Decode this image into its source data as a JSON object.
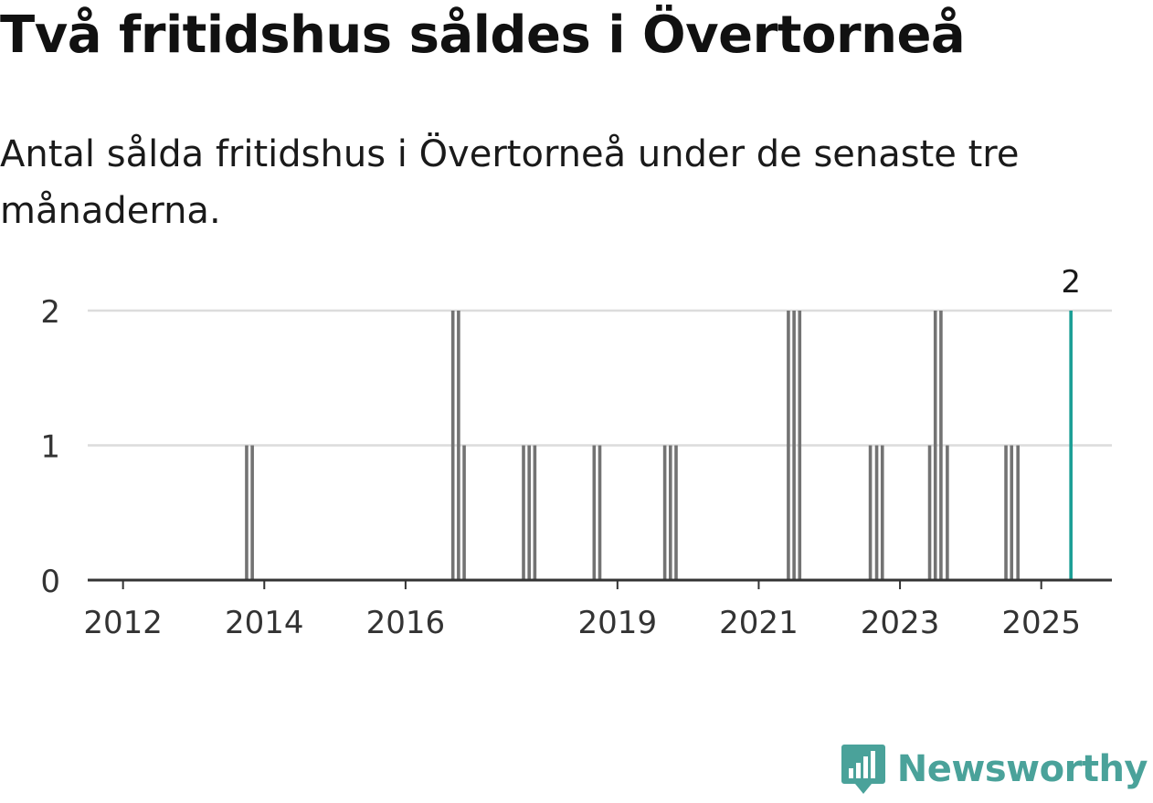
{
  "header": {
    "title": "Två fritidshus såldes i Övertorneå",
    "subtitle": "Antal sålda fritidshus i Övertorneå under de senaste tre månaderna."
  },
  "brand": {
    "name": "Newsworthy",
    "logo_icon": "bar-chart-speech-bubble-icon"
  },
  "colors": {
    "bar": "#737373",
    "highlight": "#1a9e95",
    "grid": "#dcdcdc",
    "axis": "#333333",
    "text": "#333333",
    "brand": "#4aa29a"
  },
  "chart_data": {
    "type": "bar",
    "title": "",
    "xlabel": "",
    "ylabel": "",
    "ylim": [
      0,
      2
    ],
    "xlim": [
      2011.5,
      2026.0
    ],
    "grid": true,
    "y_ticks": [
      0,
      1,
      2
    ],
    "x_ticks": [
      {
        "value": 2012,
        "label": "2012"
      },
      {
        "value": 2014,
        "label": "2014"
      },
      {
        "value": 2016,
        "label": "2016"
      },
      {
        "value": 2019,
        "label": "2019"
      },
      {
        "value": 2021,
        "label": "2021"
      },
      {
        "value": 2023,
        "label": "2023"
      },
      {
        "value": 2025,
        "label": "2025"
      }
    ],
    "series": [
      {
        "points": [
          {
            "x": 2013.75,
            "y": 1
          },
          {
            "x": 2013.83,
            "y": 1
          },
          {
            "x": 2016.67,
            "y": 2
          },
          {
            "x": 2016.75,
            "y": 2
          },
          {
            "x": 2016.83,
            "y": 1
          },
          {
            "x": 2017.67,
            "y": 1
          },
          {
            "x": 2017.75,
            "y": 1
          },
          {
            "x": 2017.83,
            "y": 1
          },
          {
            "x": 2018.67,
            "y": 1
          },
          {
            "x": 2018.75,
            "y": 1
          },
          {
            "x": 2019.67,
            "y": 1
          },
          {
            "x": 2019.75,
            "y": 1
          },
          {
            "x": 2019.83,
            "y": 1
          },
          {
            "x": 2021.42,
            "y": 2
          },
          {
            "x": 2021.5,
            "y": 2
          },
          {
            "x": 2021.58,
            "y": 2
          },
          {
            "x": 2022.58,
            "y": 1
          },
          {
            "x": 2022.67,
            "y": 1
          },
          {
            "x": 2022.75,
            "y": 1
          },
          {
            "x": 2023.42,
            "y": 1
          },
          {
            "x": 2023.5,
            "y": 2
          },
          {
            "x": 2023.58,
            "y": 2
          },
          {
            "x": 2023.67,
            "y": 1
          },
          {
            "x": 2024.5,
            "y": 1
          },
          {
            "x": 2024.58,
            "y": 1
          },
          {
            "x": 2024.67,
            "y": 1
          }
        ]
      }
    ],
    "highlight": {
      "x": 2025.42,
      "y": 2,
      "label": "2"
    }
  }
}
